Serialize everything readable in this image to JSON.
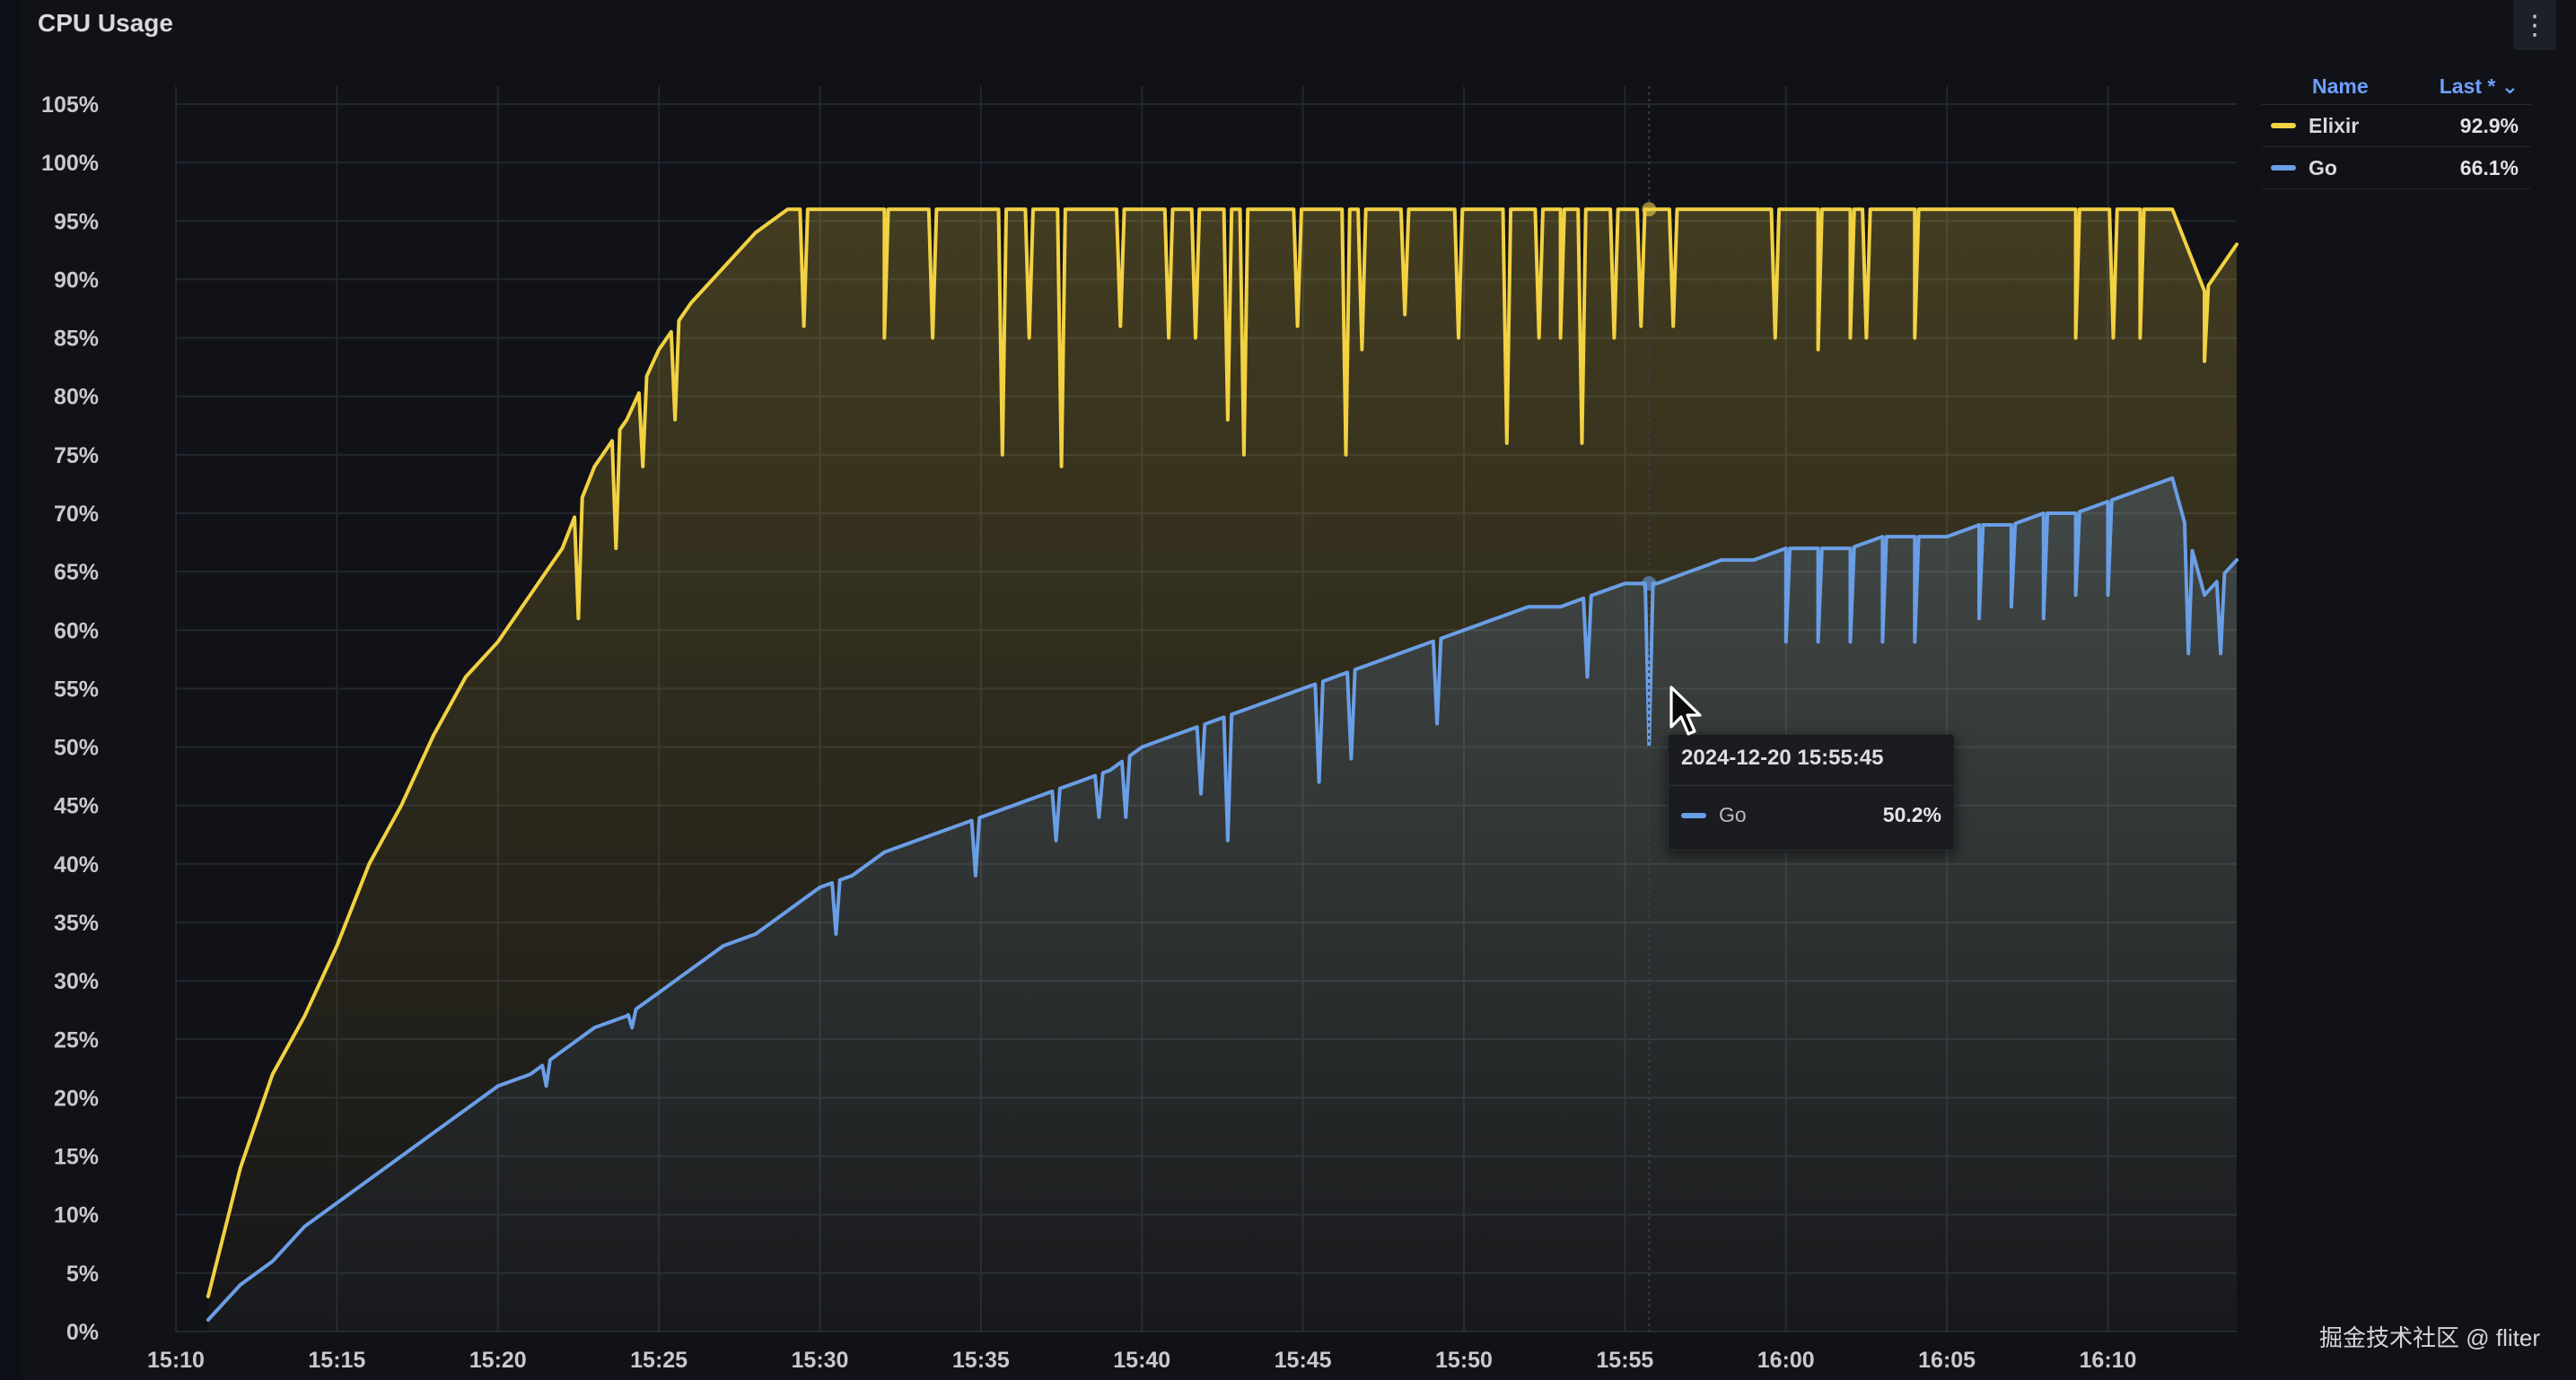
{
  "panel": {
    "title": "CPU Usage",
    "menu_icon": "kebab-menu-icon",
    "menu_glyph": "⋮"
  },
  "legend": {
    "name_header": "Name",
    "last_header": "Last *",
    "sort_icon": "chevron-down-icon",
    "sort_glyph": "⌄",
    "items": [
      {
        "label": "Elixir",
        "value": "92.9%",
        "color": "#f2d142"
      },
      {
        "label": "Go",
        "value": "66.1%",
        "color": "#6a9ee6"
      }
    ]
  },
  "tooltip": {
    "time": "2024-12-20 15:55:45",
    "series": "Go",
    "value": "50.2%",
    "color": "#6a9ee6"
  },
  "watermark": "掘金技术社区 @ fliter",
  "chart_data": {
    "type": "line",
    "title": "CPU Usage",
    "xlabel": "",
    "ylabel": "",
    "x_ticks": [
      "15:10",
      "15:15",
      "15:20",
      "15:25",
      "15:30",
      "15:35",
      "15:40",
      "15:45",
      "15:50",
      "15:55",
      "16:00",
      "16:05",
      "16:10"
    ],
    "y_ticks": [
      "0%",
      "5%",
      "10%",
      "15%",
      "20%",
      "25%",
      "30%",
      "35%",
      "40%",
      "45%",
      "50%",
      "55%",
      "60%",
      "65%",
      "70%",
      "75%",
      "80%",
      "85%",
      "90%",
      "95%",
      "100%",
      "105%"
    ],
    "xlim": [
      "15:10",
      "16:14"
    ],
    "ylim": [
      0,
      105
    ],
    "grid": true,
    "legend_position": "right",
    "fill": "gradient",
    "series": [
      {
        "name": "Elixir",
        "color": "#f2d142",
        "points": [
          [
            "15:11",
            3
          ],
          [
            "15:12",
            14
          ],
          [
            "15:13",
            22
          ],
          [
            "15:14",
            27
          ],
          [
            "15:15",
            33
          ],
          [
            "15:16",
            40
          ],
          [
            "15:17",
            45
          ],
          [
            "15:18",
            51
          ],
          [
            "15:19",
            56
          ],
          [
            "15:20",
            59
          ],
          [
            "15:21",
            63
          ],
          [
            "15:22",
            67
          ],
          [
            "15:23",
            74
          ],
          [
            "15:24",
            78
          ],
          [
            "15:25",
            84
          ],
          [
            "15:26",
            88
          ],
          [
            "15:27",
            91
          ],
          [
            "15:28",
            94
          ],
          [
            "15:29",
            96
          ],
          [
            "15:30",
            96
          ],
          [
            "15:31",
            96
          ],
          [
            "15:32",
            96
          ],
          [
            "15:33",
            96
          ],
          [
            "15:34",
            96
          ],
          [
            "15:35",
            96
          ],
          [
            "15:36",
            96
          ],
          [
            "15:37",
            96
          ],
          [
            "15:38",
            96
          ],
          [
            "15:39",
            96
          ],
          [
            "15:40",
            96
          ],
          [
            "15:41",
            96
          ],
          [
            "15:42",
            96
          ],
          [
            "15:43",
            96
          ],
          [
            "15:44",
            96
          ],
          [
            "15:45",
            96
          ],
          [
            "15:46",
            96
          ],
          [
            "15:47",
            96
          ],
          [
            "15:48",
            96
          ],
          [
            "15:49",
            96
          ],
          [
            "15:50",
            96
          ],
          [
            "15:51",
            96
          ],
          [
            "15:52",
            96
          ],
          [
            "15:53",
            96
          ],
          [
            "15:54",
            96
          ],
          [
            "15:55",
            96
          ],
          [
            "15:56",
            96
          ],
          [
            "15:57",
            96
          ],
          [
            "15:58",
            96
          ],
          [
            "15:59",
            96
          ],
          [
            "16:00",
            96
          ],
          [
            "16:01",
            96
          ],
          [
            "16:02",
            96
          ],
          [
            "16:03",
            96
          ],
          [
            "16:04",
            96
          ],
          [
            "16:05",
            96
          ],
          [
            "16:06",
            96
          ],
          [
            "16:07",
            96
          ],
          [
            "16:08",
            96
          ],
          [
            "16:09",
            96
          ],
          [
            "16:10",
            96
          ],
          [
            "16:11",
            96
          ],
          [
            "16:12",
            96
          ],
          [
            "16:13",
            89
          ],
          [
            "16:14",
            93
          ]
        ],
        "dips": [
          [
            "15:22:30",
            61
          ],
          [
            "15:23:40",
            67
          ],
          [
            "15:24:30",
            74
          ],
          [
            "15:25:30",
            78
          ],
          [
            "15:29:30",
            86
          ],
          [
            "15:32:00",
            85
          ],
          [
            "15:33:30",
            85
          ],
          [
            "15:35:40",
            75
          ],
          [
            "15:36:30",
            85
          ],
          [
            "15:37:30",
            74
          ],
          [
            "15:39:20",
            86
          ],
          [
            "15:40:50",
            85
          ],
          [
            "15:41:40",
            85
          ],
          [
            "15:42:40",
            78
          ],
          [
            "15:43:10",
            75
          ],
          [
            "15:44:50",
            86
          ],
          [
            "15:46:20",
            75
          ],
          [
            "15:46:50",
            84
          ],
          [
            "15:48:10",
            87
          ],
          [
            "15:49:50",
            85
          ],
          [
            "15:51:20",
            76
          ],
          [
            "15:52:20",
            85
          ],
          [
            "15:53:00",
            85
          ],
          [
            "15:53:40",
            76
          ],
          [
            "15:54:40",
            85
          ],
          [
            "15:55:30",
            86
          ],
          [
            "15:56:30",
            86
          ],
          [
            "15:59:40",
            85
          ],
          [
            "16:01:00",
            84
          ],
          [
            "16:02:00",
            85
          ],
          [
            "16:02:30",
            85
          ],
          [
            "16:04:00",
            85
          ],
          [
            "16:09:00",
            85
          ],
          [
            "16:10:10",
            85
          ],
          [
            "16:11:00",
            85
          ],
          [
            "16:13:00",
            83
          ]
        ]
      },
      {
        "name": "Go",
        "color": "#6a9ee6",
        "points": [
          [
            "15:11",
            1
          ],
          [
            "15:12",
            4
          ],
          [
            "15:13",
            6
          ],
          [
            "15:14",
            9
          ],
          [
            "15:15",
            11
          ],
          [
            "15:16",
            13
          ],
          [
            "15:17",
            15
          ],
          [
            "15:18",
            17
          ],
          [
            "15:19",
            19
          ],
          [
            "15:20",
            21
          ],
          [
            "15:21",
            22
          ],
          [
            "15:22",
            24
          ],
          [
            "15:23",
            26
          ],
          [
            "15:24",
            27
          ],
          [
            "15:25",
            29
          ],
          [
            "15:26",
            31
          ],
          [
            "15:27",
            33
          ],
          [
            "15:28",
            34
          ],
          [
            "15:29",
            36
          ],
          [
            "15:30",
            38
          ],
          [
            "15:31",
            39
          ],
          [
            "15:32",
            41
          ],
          [
            "15:33",
            42
          ],
          [
            "15:34",
            43
          ],
          [
            "15:35",
            44
          ],
          [
            "15:36",
            45
          ],
          [
            "15:37",
            46
          ],
          [
            "15:38",
            47
          ],
          [
            "15:39",
            48
          ],
          [
            "15:40",
            50
          ],
          [
            "15:41",
            51
          ],
          [
            "15:42",
            52
          ],
          [
            "15:43",
            53
          ],
          [
            "15:44",
            54
          ],
          [
            "15:45",
            55
          ],
          [
            "15:46",
            56
          ],
          [
            "15:47",
            57
          ],
          [
            "15:48",
            58
          ],
          [
            "15:49",
            59
          ],
          [
            "15:50",
            60
          ],
          [
            "15:51",
            61
          ],
          [
            "15:52",
            62
          ],
          [
            "15:53",
            62
          ],
          [
            "15:54",
            63
          ],
          [
            "15:55",
            64
          ],
          [
            "15:56",
            64
          ],
          [
            "15:57",
            65
          ],
          [
            "15:58",
            66
          ],
          [
            "15:59",
            66
          ],
          [
            "16:00",
            67
          ],
          [
            "16:01",
            67
          ],
          [
            "16:02",
            67
          ],
          [
            "16:03",
            68
          ],
          [
            "16:04",
            68
          ],
          [
            "16:05",
            68
          ],
          [
            "16:06",
            69
          ],
          [
            "16:07",
            69
          ],
          [
            "16:08",
            70
          ],
          [
            "16:09",
            70
          ],
          [
            "16:10",
            71
          ],
          [
            "16:11",
            72
          ],
          [
            "16:12",
            73
          ],
          [
            "16:13",
            63
          ],
          [
            "16:14",
            66
          ]
        ],
        "dips": [
          [
            "15:21:30",
            21
          ],
          [
            "15:24:10",
            26
          ],
          [
            "15:30:30",
            34
          ],
          [
            "15:34:50",
            39
          ],
          [
            "15:37:20",
            42
          ],
          [
            "15:38:40",
            44
          ],
          [
            "15:39:30",
            44
          ],
          [
            "15:41:50",
            46
          ],
          [
            "15:42:40",
            42
          ],
          [
            "15:45:30",
            47
          ],
          [
            "15:46:30",
            49
          ],
          [
            "15:49:10",
            52
          ],
          [
            "15:53:50",
            56
          ],
          [
            "15:55:45",
            50.2
          ],
          [
            "16:00:00",
            59
          ],
          [
            "16:01:00",
            59
          ],
          [
            "16:02:00",
            59
          ],
          [
            "16:03:00",
            59
          ],
          [
            "16:04:00",
            59
          ],
          [
            "16:06:00",
            61
          ],
          [
            "16:07:00",
            62
          ],
          [
            "16:08:00",
            61
          ],
          [
            "16:09:00",
            63
          ],
          [
            "16:10:00",
            63
          ],
          [
            "16:12:30",
            58
          ],
          [
            "16:13:30",
            58
          ]
        ]
      }
    ],
    "hover": {
      "time": "15:55:45",
      "series": "Go",
      "value": 50.2
    }
  }
}
